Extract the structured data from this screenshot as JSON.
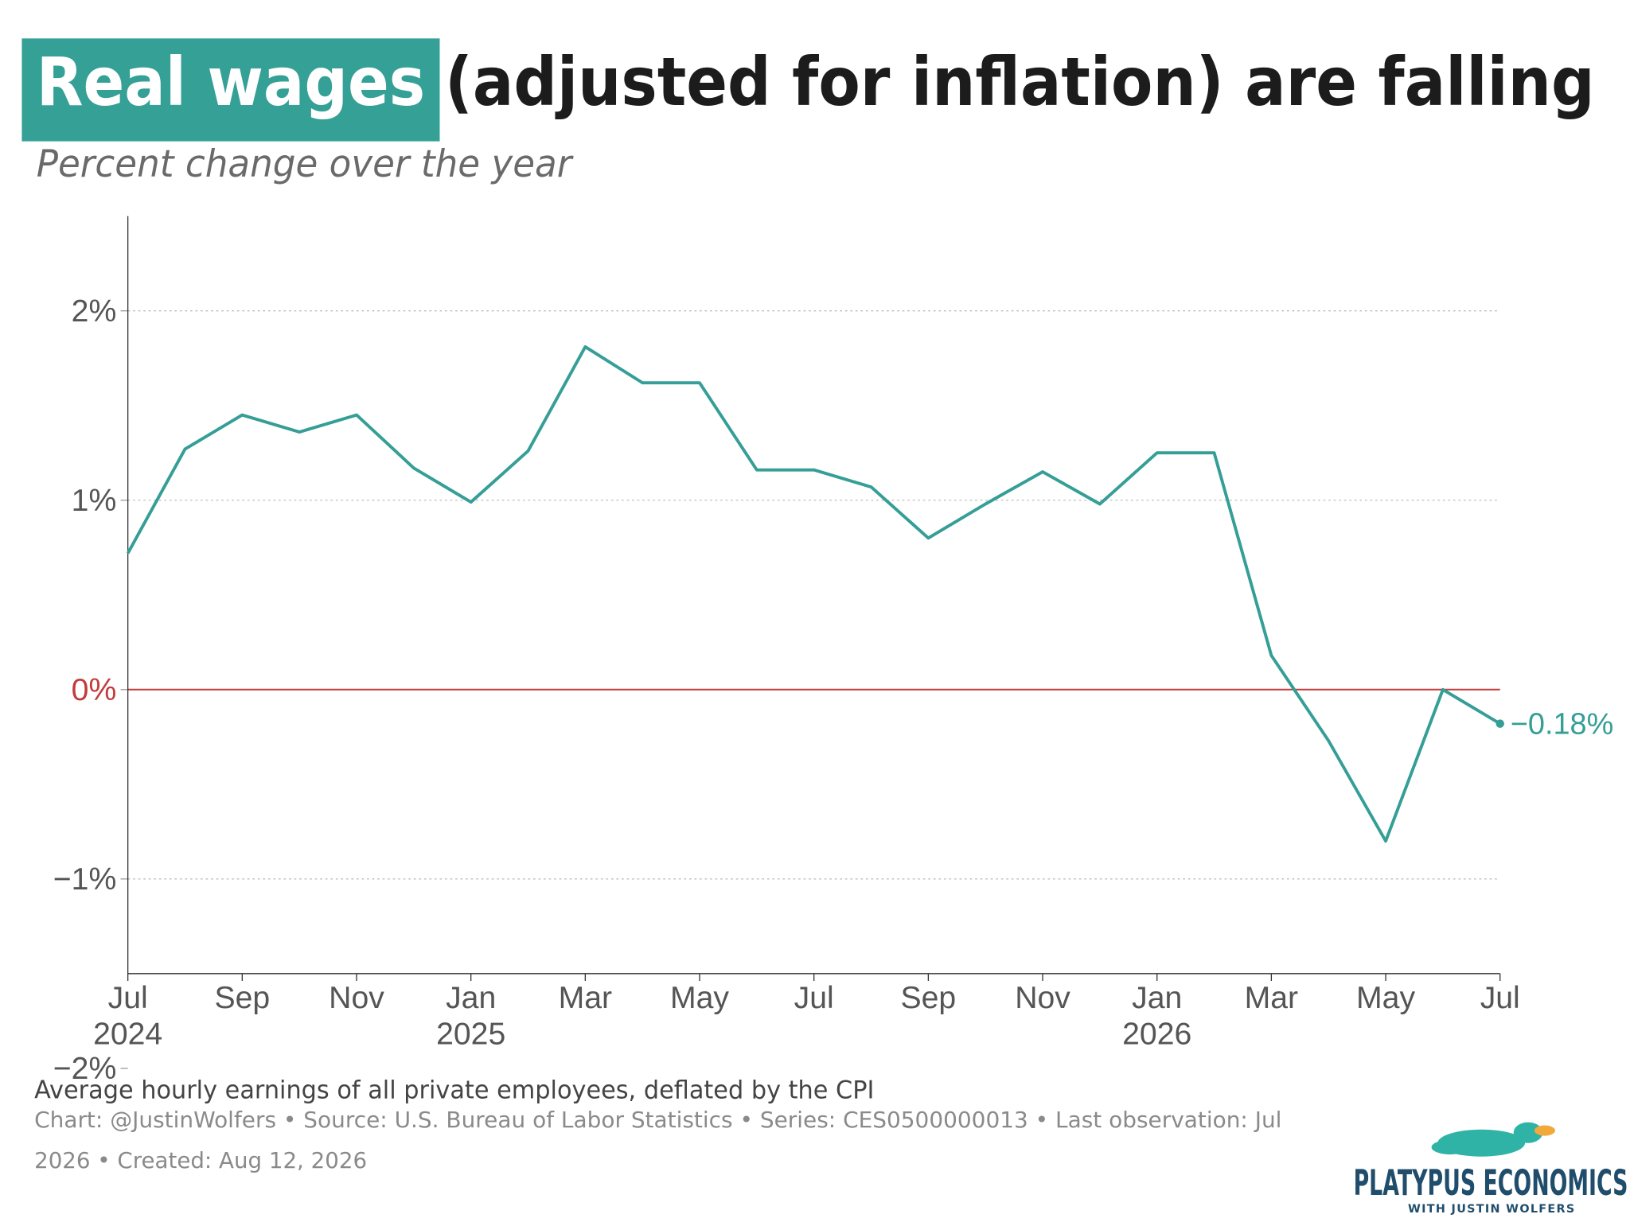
{
  "chart_data": {
    "type": "line",
    "title_highlight": "Real wages",
    "title": "(adjusted for inflation) are falling",
    "subtitle": "Percent change over the year",
    "caption": "Average hourly earnings of all private employees, deflated by the CPI",
    "source": [
      "Chart: @JustinWolfers • Source: U.S. Bureau of Labor Statistics • Series: CES0500000013 • Last observation: Jul",
      "2026 • Created: Aug 12, 2026"
    ],
    "logo": {
      "name": "PLATYPUS ECONOMICS",
      "tagline": "WITH JUSTIN WOLFERS"
    },
    "x": [
      "2024-07",
      "2024-08",
      "2024-09",
      "2024-10",
      "2024-11",
      "2024-12",
      "2025-01",
      "2025-02",
      "2025-03",
      "2025-04",
      "2025-05",
      "2025-06",
      "2025-07",
      "2025-08",
      "2025-09",
      "2025-10",
      "2025-11",
      "2025-12",
      "2026-01",
      "2026-02",
      "2026-03",
      "2026-04",
      "2026-05",
      "2026-06",
      "2026-07"
    ],
    "series": [
      {
        "name": "Real wages",
        "color": "#359e96",
        "values": [
          0.72,
          1.27,
          1.45,
          1.36,
          1.45,
          1.17,
          0.99,
          1.26,
          1.81,
          1.62,
          1.62,
          1.16,
          1.16,
          1.07,
          0.8,
          0.98,
          1.15,
          0.98,
          1.25,
          1.25,
          0.18,
          -0.27,
          -0.8,
          0.0,
          -0.18
        ],
        "value_labels": [
          null,
          null,
          null,
          null,
          null,
          null,
          null,
          null,
          null,
          null,
          null,
          null,
          null,
          null,
          null,
          null,
          null,
          null,
          null,
          null,
          null,
          null,
          null,
          null,
          "−0.18%"
        ]
      }
    ],
    "xlim": [
      "2024-07",
      "2026-07"
    ],
    "xticks": [
      {
        "value": "2024-07",
        "label": [
          "Jul",
          "2024"
        ]
      },
      {
        "value": "2024-09",
        "label": [
          "Sep"
        ]
      },
      {
        "value": "2024-11",
        "label": [
          "Nov"
        ]
      },
      {
        "value": "2025-01",
        "label": [
          "Jan",
          "2025"
        ]
      },
      {
        "value": "2025-03",
        "label": [
          "Mar"
        ]
      },
      {
        "value": "2025-05",
        "label": [
          "May"
        ]
      },
      {
        "value": "2025-07",
        "label": [
          "Jul"
        ]
      },
      {
        "value": "2025-09",
        "label": [
          "Sep"
        ]
      },
      {
        "value": "2025-11",
        "label": [
          "Nov"
        ]
      },
      {
        "value": "2026-01",
        "label": [
          "Jan",
          "2026"
        ]
      },
      {
        "value": "2026-03",
        "label": [
          "Mar"
        ]
      },
      {
        "value": "2026-05",
        "label": [
          "May"
        ]
      },
      {
        "value": "2026-07",
        "label": [
          "Jul"
        ]
      }
    ],
    "ylim": [
      -1.5,
      2.5
    ],
    "yticks": [
      {
        "value": -2,
        "label": "−2%"
      },
      {
        "value": -1,
        "label": "−1%"
      },
      {
        "value": 0,
        "label": "0%"
      },
      {
        "value": 1,
        "label": "1%"
      },
      {
        "value": 2,
        "label": "2%"
      }
    ],
    "grid": true,
    "zero_line_color": "#c23b3b",
    "highlight_color": "#34a096"
  }
}
